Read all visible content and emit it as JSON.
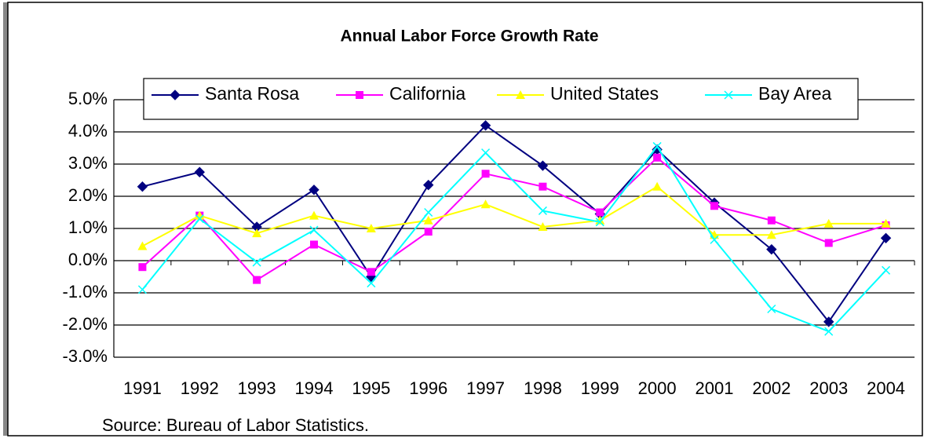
{
  "chart_data": {
    "type": "line",
    "title": "Annual Labor Force Growth Rate",
    "categories": [
      "1991",
      "1992",
      "1993",
      "1994",
      "1995",
      "1996",
      "1997",
      "1998",
      "1999",
      "2000",
      "2001",
      "2002",
      "2003",
      "2004"
    ],
    "series": [
      {
        "name": "Santa Rosa",
        "color": "#000080",
        "marker": "diamond",
        "values": [
          2.3,
          2.75,
          1.05,
          2.2,
          -0.5,
          2.35,
          4.2,
          2.95,
          1.45,
          3.45,
          1.8,
          0.35,
          -1.9,
          0.7
        ]
      },
      {
        "name": "California",
        "color": "#ff00ff",
        "marker": "square",
        "values": [
          -0.2,
          1.4,
          -0.6,
          0.5,
          -0.35,
          0.9,
          2.7,
          2.3,
          1.5,
          3.2,
          1.7,
          1.25,
          0.55,
          1.1
        ]
      },
      {
        "name": "United States",
        "color": "#ffff00",
        "marker": "triangle",
        "values": [
          0.45,
          1.4,
          0.85,
          1.4,
          1.0,
          1.25,
          1.75,
          1.05,
          1.25,
          2.3,
          0.8,
          0.8,
          1.15,
          1.15
        ]
      },
      {
        "name": "Bay Area",
        "color": "#00ffff",
        "marker": "x",
        "values": [
          -0.9,
          1.3,
          -0.05,
          0.95,
          -0.7,
          1.5,
          3.35,
          1.55,
          1.2,
          3.55,
          0.65,
          -1.5,
          -2.2,
          -0.3
        ]
      }
    ],
    "ylim": [
      -3,
      5
    ],
    "yticks": [
      {
        "value": -3,
        "label": "-3.0%"
      },
      {
        "value": -2,
        "label": "-2.0%"
      },
      {
        "value": -1,
        "label": "-1.0%"
      },
      {
        "value": 0,
        "label": "0.0%"
      },
      {
        "value": 1,
        "label": "1.0%"
      },
      {
        "value": 2,
        "label": "2.0%"
      },
      {
        "value": 3,
        "label": "3.0%"
      },
      {
        "value": 4,
        "label": "4.0%"
      },
      {
        "value": 5,
        "label": "5.0%"
      }
    ],
    "grid": true,
    "legend": "top",
    "source": "Source: Bureau of Labor Statistics."
  }
}
